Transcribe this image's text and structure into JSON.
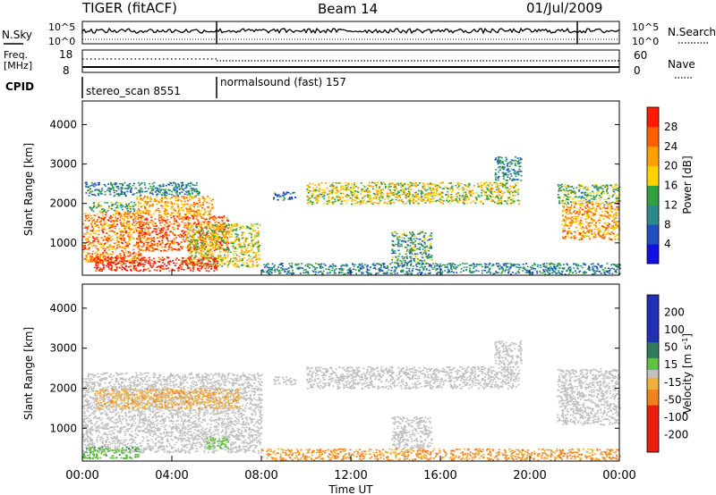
{
  "header": {
    "title": "TIGER (fitACF)",
    "beam": "Beam 14",
    "date": "01/Jul/2009"
  },
  "top_panels": {
    "nsky_label": "N.Sky",
    "nsky_ticks": [
      "10^5",
      "10^0"
    ],
    "nsearch_label": "N.Search",
    "nsearch_ticks": [
      "10^5",
      "10^0"
    ],
    "freq_label": "Freq.",
    "freq_unit": "[MHz]",
    "freq_ticks": [
      "18",
      "8"
    ],
    "nave_label": "Nave",
    "nave_ticks": [
      "60",
      "0"
    ],
    "cpid_label": "CPID",
    "cpid_segments": [
      {
        "name": "stereo_scan 8551",
        "start_hour": 0,
        "end_hour": 6
      },
      {
        "name": "normalsound (fast) 157",
        "start_hour": 6,
        "end_hour": 24
      }
    ]
  },
  "chart_data": [
    {
      "type": "heatmap",
      "quantity": "Power",
      "xlabel": "",
      "ylabel": "Slant Range [km]",
      "x_range_hours": [
        0,
        24
      ],
      "ylim": [
        180,
        4600
      ],
      "y_ticks": [
        "1000",
        "2000",
        "3000",
        "4000"
      ],
      "colorbar_label": "Power [dB]",
      "colorbar_ticks": [
        "4",
        "8",
        "12",
        "16",
        "20",
        "24",
        "28"
      ],
      "colorbar_range": [
        0,
        32
      ],
      "echo_regions": [
        {
          "t": [
            0.1,
            5.2
          ],
          "r": [
            2200,
            2550
          ],
          "value": 10
        },
        {
          "t": [
            0.3,
            2.4
          ],
          "r": [
            1800,
            2050
          ],
          "value": 14
        },
        {
          "t": [
            2.4,
            5.8
          ],
          "r": [
            1700,
            2200
          ],
          "value": 22
        },
        {
          "t": [
            0.0,
            2.6
          ],
          "r": [
            500,
            1800
          ],
          "value": 24
        },
        {
          "t": [
            2.5,
            6.5
          ],
          "r": [
            800,
            1700
          ],
          "value": 26
        },
        {
          "t": [
            4.6,
            7.9
          ],
          "r": [
            400,
            1500
          ],
          "value": 18
        },
        {
          "t": [
            0.5,
            6.0
          ],
          "r": [
            300,
            650
          ],
          "value": 30
        },
        {
          "t": [
            8.5,
            9.5
          ],
          "r": [
            2100,
            2300
          ],
          "value": 8
        },
        {
          "t": [
            10.0,
            19.5
          ],
          "r": [
            2000,
            2550
          ],
          "value": 18
        },
        {
          "t": [
            13.8,
            15.6
          ],
          "r": [
            500,
            1300
          ],
          "value": 12
        },
        {
          "t": [
            8.0,
            24.0
          ],
          "r": [
            220,
            500
          ],
          "value": 10
        },
        {
          "t": [
            18.4,
            19.6
          ],
          "r": [
            2600,
            3200
          ],
          "value": 10
        },
        {
          "t": [
            21.2,
            24.0
          ],
          "r": [
            2000,
            2500
          ],
          "value": 14
        },
        {
          "t": [
            21.4,
            24.0
          ],
          "r": [
            1100,
            2050
          ],
          "value": 23
        }
      ]
    },
    {
      "type": "heatmap",
      "quantity": "Velocity",
      "xlabel": "Time UT",
      "ylabel": "Slant Range [km]",
      "x_range_hours": [
        0,
        24
      ],
      "x_ticks": [
        "00:00",
        "04:00",
        "08:00",
        "12:00",
        "16:00",
        "20:00",
        "00:00"
      ],
      "ylim": [
        180,
        4600
      ],
      "y_ticks": [
        "1000",
        "2000",
        "3000",
        "4000"
      ],
      "colorbar_label": "Velocity [m s^-1]",
      "colorbar_ticks": [
        "200",
        "100",
        "50",
        "15",
        "-15",
        "-50",
        "-100",
        "-200"
      ],
      "colorbar_range": [
        -250,
        250
      ],
      "echo_regions": [
        {
          "t": [
            0.0,
            8.0
          ],
          "r": [
            400,
            2400
          ],
          "value": 0
        },
        {
          "t": [
            0.0,
            2.5
          ],
          "r": [
            250,
            550
          ],
          "value": 40
        },
        {
          "t": [
            5.5,
            6.5
          ],
          "r": [
            500,
            800
          ],
          "value": 35
        },
        {
          "t": [
            0.5,
            7.0
          ],
          "r": [
            1500,
            2000
          ],
          "value": -40
        },
        {
          "t": [
            8.5,
            9.5
          ],
          "r": [
            2100,
            2300
          ],
          "value": 0
        },
        {
          "t": [
            10.0,
            19.5
          ],
          "r": [
            2000,
            2550
          ],
          "value": 0
        },
        {
          "t": [
            13.8,
            15.6
          ],
          "r": [
            500,
            1300
          ],
          "value": 0
        },
        {
          "t": [
            8.0,
            24.0
          ],
          "r": [
            220,
            500
          ],
          "value": -50
        },
        {
          "t": [
            18.4,
            19.6
          ],
          "r": [
            2600,
            3200
          ],
          "value": 0
        },
        {
          "t": [
            21.2,
            24.0
          ],
          "r": [
            1100,
            2500
          ],
          "value": 0
        }
      ]
    }
  ]
}
